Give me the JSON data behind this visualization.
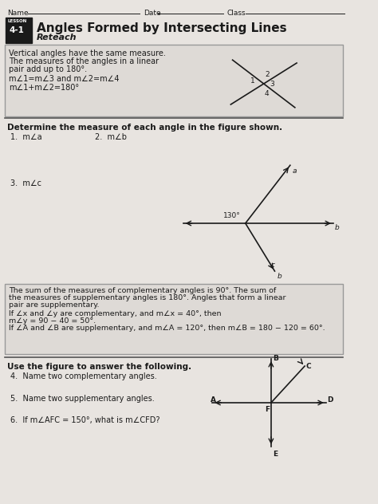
{
  "bg_color": "#e8e4e0",
  "text_color": "#1a1a1a",
  "title": "Angles Formed by Intersecting Lines",
  "lesson_num": "4-1",
  "subtitle": "Reteach",
  "header_fields": [
    "Name",
    "Date",
    "Class"
  ],
  "section1_lines": [
    "Vertical angles have the same measure.",
    "The measures of the angles in a linear",
    "pair add up to 180°."
  ],
  "section1_eq1": "m∠1=m∠3 and m∠2=m∠4",
  "section1_eq2": "m∠1+m∠2=180°",
  "section2_title": "Determine the measure of each angle in the figure shown.",
  "section2_problems": [
    "1.  m∠a",
    "2.  m∠b",
    "3.  m∠c"
  ],
  "section3_lines": [
    "The sum of the measures of complementary angles is 90°. The sum of",
    "the measures of supplementary angles is 180°. Angles that form a linear",
    "pair are supplementary."
  ],
  "section3_eq1": "If ∠x and ∠y are complementary, and m∠x = 40°, then",
  "section3_eq2": "m∠y = 90 − 40 = 50°.",
  "section3_eq3": "If ∠A and ∠B are supplementary, and m∠A = 120°, then m∠B = 180 − 120 = 60°.",
  "section4_title": "Use the figure to answer the following.",
  "section4_problems": [
    "4.  Name two complementary angles.",
    "5.  Name two supplementary angles.",
    "6.  If m∠AFC = 150°, what is m∠CFD?"
  ]
}
